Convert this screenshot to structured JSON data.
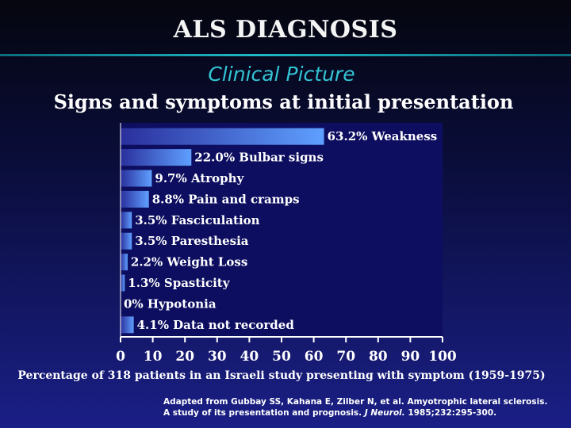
{
  "slide": {
    "title": "ALS DIAGNOSIS",
    "subtitle": "Clinical Picture",
    "heading": "Signs and symptoms at initial presentation"
  },
  "citation": {
    "line1": "Adapted from Gubbay SS, Kahana E, Zilber N, et al. Amyotrophic lateral sclerosis.",
    "line2_prefix": "A study of its presentation and prognosis.",
    "journal": "J Neurol.",
    "line2_suffix": "1985;232:295-300."
  },
  "colors": {
    "plot_background": "#0d0e60",
    "bar_start": "#2a2f9c",
    "bar_end": "#5fa0ff",
    "axis": "#ffffff"
  },
  "chart_data": {
    "type": "bar",
    "orientation": "horizontal",
    "title": "Signs and symptoms at initial presentation",
    "xlabel": "Percentage of 318 patients in an Israeli study presenting with symptom (1959-1975)",
    "xlim": [
      0,
      100
    ],
    "x_ticks": [
      0,
      10,
      20,
      30,
      40,
      50,
      60,
      70,
      80,
      90,
      100
    ],
    "grid": false,
    "categories": [
      "Weakness",
      "Bulbar signs",
      "Atrophy",
      "Pain and cramps",
      "Fasciculation",
      "Paresthesia",
      "Weight Loss",
      "Spasticity",
      "Hypotonia",
      "Data not recorded"
    ],
    "values": [
      63.2,
      22.0,
      9.7,
      8.8,
      3.5,
      3.5,
      2.2,
      1.3,
      0,
      4.1
    ],
    "value_labels": [
      "63.2%",
      "22.0%",
      "9.7%",
      "8.8%",
      "3.5%",
      "3.5%",
      "2.2%",
      "1.3%",
      "0%",
      "4.1%"
    ]
  }
}
